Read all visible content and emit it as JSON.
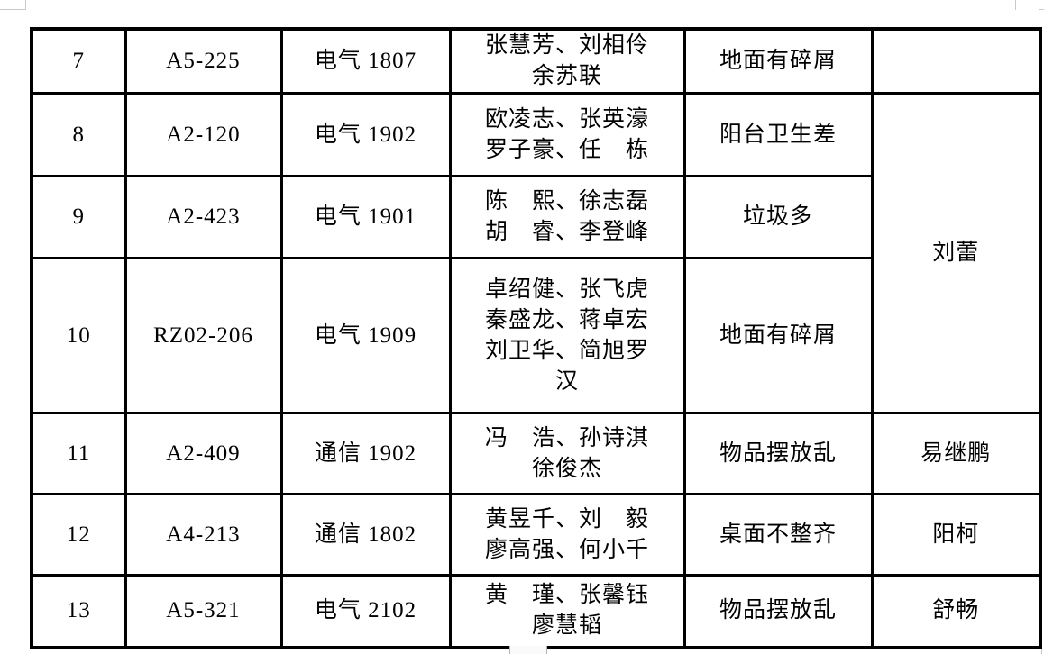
{
  "table": {
    "border_color": "#000000",
    "text_color": "#000000",
    "rows": [
      {
        "no": "7",
        "room": "A5-225",
        "class_name": "电气 1807",
        "members_lines": [
          "张慧芳、刘相伶",
          "余苏联"
        ],
        "issue": "地面有碎屑",
        "inspector": {
          "text": "",
          "rowspan": 1
        }
      },
      {
        "no": "8",
        "room": "A2-120",
        "class_name": "电气 1902",
        "members_lines": [
          "欧凌志、张英濠",
          "罗子豪、任　栋"
        ],
        "issue": "阳台卫生差",
        "inspector": {
          "text": "刘蕾",
          "rowspan": 3
        }
      },
      {
        "no": "9",
        "room": "A2-423",
        "class_name": "电气 1901",
        "members_lines": [
          "陈　熙、徐志磊",
          "胡　睿、李登峰"
        ],
        "issue": "垃圾多",
        "inspector": null
      },
      {
        "no": "10",
        "room": "RZ02-206",
        "class_name": "电气 1909",
        "members_lines": [
          "卓绍健、张飞虎",
          "秦盛龙、蒋卓宏",
          "刘卫华、简旭罗",
          "汉"
        ],
        "issue": "地面有碎屑",
        "inspector": null
      },
      {
        "no": "11",
        "room": "A2-409",
        "class_name": "通信 1902",
        "members_lines": [
          "冯　浩、孙诗淇",
          "徐俊杰"
        ],
        "issue": "物品摆放乱",
        "inspector": {
          "text": "易继鹏",
          "rowspan": 1
        }
      },
      {
        "no": "12",
        "room": "A4-213",
        "class_name": "通信 1802",
        "members_lines": [
          "黄昱千、刘　毅",
          "廖高强、何小千"
        ],
        "issue": "桌面不整齐",
        "inspector": {
          "text": "阳柯",
          "rowspan": 1
        }
      },
      {
        "no": "13",
        "room": "A5-321",
        "class_name": "电气 2102",
        "members_lines": [
          "黄　瑾、张馨钰",
          "廖慧韬"
        ],
        "issue": "物品摆放乱",
        "inspector": {
          "text": "舒畅",
          "rowspan": 1
        }
      }
    ]
  }
}
